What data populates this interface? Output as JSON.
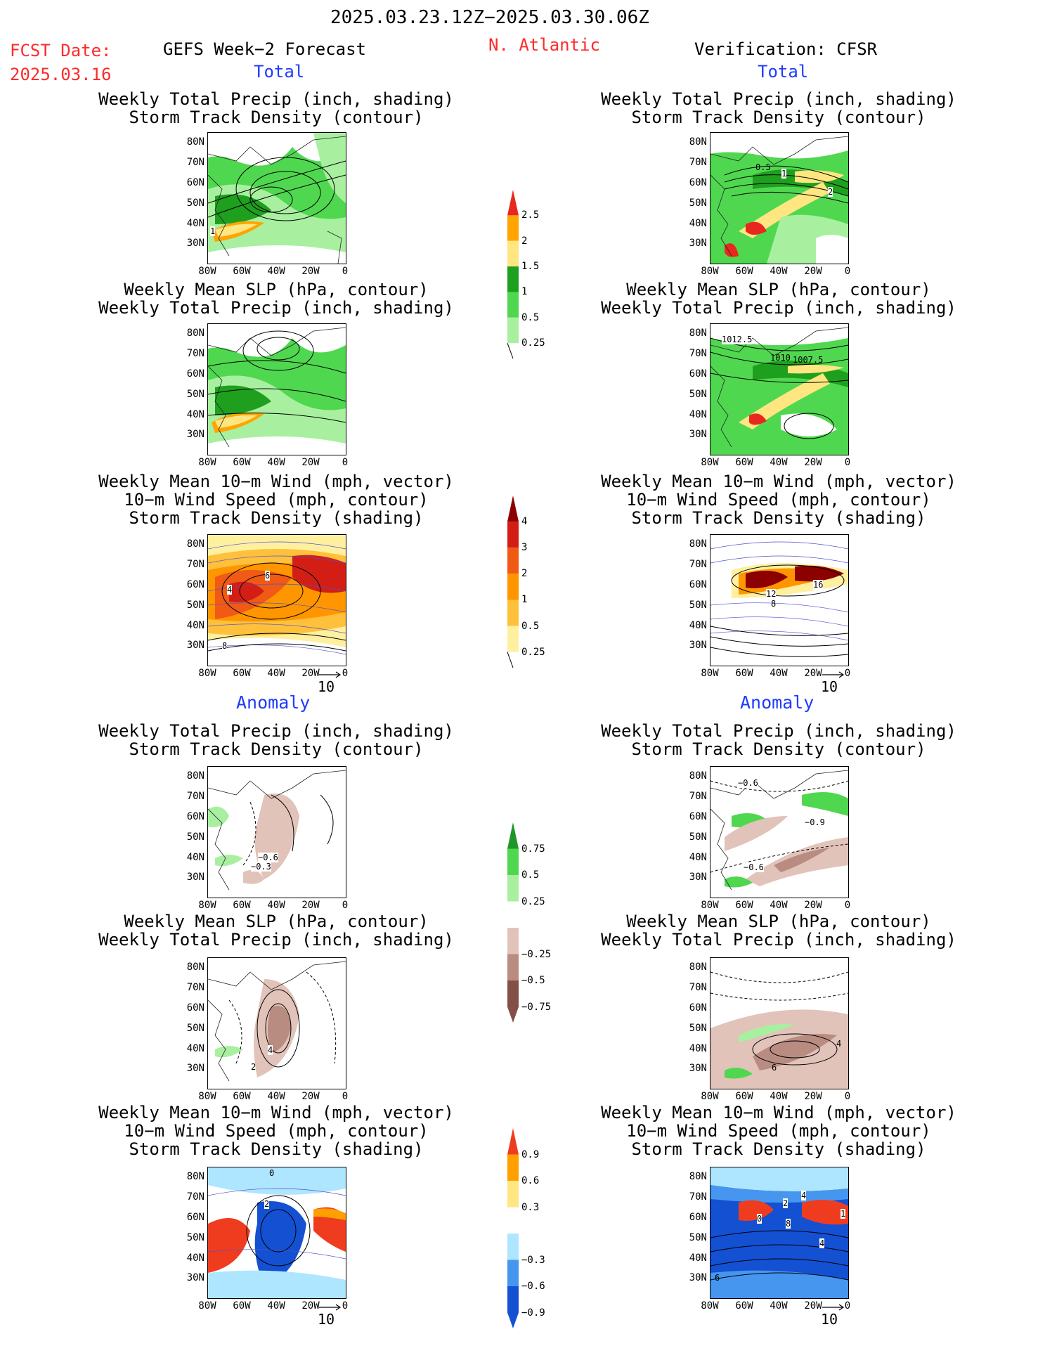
{
  "header": {
    "period": "2025.03.23.12Z−2025.03.30.06Z",
    "fcst_label": "FCST Date:",
    "fcst_date": "2025.03.16",
    "forecast_title": "GEFS Week−2 Forecast",
    "region": "N. Atlantic",
    "verification": "Verification: CFSR"
  },
  "sections": {
    "total": "Total",
    "anomaly": "Anomaly"
  },
  "panel_titles": {
    "precip_track": "Weekly Total Precip (inch, shading)\nStorm Track Density (contour)",
    "slp_precip": "Weekly Mean SLP (hPa, contour)\nWeekly Total Precip (inch, shading)",
    "wind_track": "Weekly Mean 10−m Wind (mph, vector)\n10−m Wind Speed (mph, contour)\nStorm Track Density (shading)"
  },
  "axes": {
    "lat_ticks": [
      "80N",
      "70N",
      "60N",
      "50N",
      "40N",
      "30N"
    ],
    "lon_ticks": [
      "80W",
      "60W",
      "40W",
      "20W",
      "0"
    ]
  },
  "vector_reference": "10",
  "colorbars": [
    {
      "name": "precip-total",
      "labels": [
        "2.5",
        "2",
        "1.5",
        "1",
        "0.5",
        "0.25"
      ],
      "colors": [
        "#e8281e",
        "#ffa400",
        "#ffe680",
        "#1ea01e",
        "#50d750",
        "#a8f0a0"
      ]
    },
    {
      "name": "track-total",
      "labels": [
        "4",
        "3",
        "2",
        "1",
        "0.5",
        "0.25"
      ],
      "colors": [
        "#8c0000",
        "#d21e14",
        "#f05a14",
        "#ff9600",
        "#ffc03c",
        "#fff0a0"
      ]
    },
    {
      "name": "precip-anomaly",
      "labels": [
        "0.75",
        "0.5",
        "0.25",
        "−0.25",
        "−0.5",
        "−0.75"
      ],
      "colors": [
        "#1e9628",
        "#50d750",
        "#a8f0a0",
        "#ffffff",
        "#e1c3b9",
        "#b98c82",
        "#825046"
      ]
    },
    {
      "name": "track-anomaly",
      "labels": [
        "0.9",
        "0.6",
        "0.3",
        "−0.3",
        "−0.6",
        "−0.9"
      ],
      "colors": [
        "#f03c1e",
        "#ffa000",
        "#ffe680",
        "#ffffff",
        "#afe6ff",
        "#4696f0",
        "#1450d2"
      ]
    }
  ],
  "contour_labels": {
    "r1": "0.5",
    "r1b": "1",
    "r1c": "2",
    "l1": "1",
    "r2": "1012.5",
    "r2b": "1010",
    "r2c": "1007.5",
    "l3a": "6",
    "l3b": "4",
    "l3c": "8",
    "r3a": "12",
    "r3b": "16",
    "r3c": "8",
    "l4a": "−0.6",
    "l4b": "−0.3",
    "r4a": "−0.6",
    "r4b": "−0.9",
    "r4c": "−0.6",
    "l5a": "4",
    "l5b": "2",
    "r5a": "6",
    "r5b": "4",
    "l6a": "0",
    "l6b": "2",
    "r6a": "0",
    "r6b": "2",
    "r6c": "4",
    "r6d": "8",
    "r6e": "1",
    "r6f": "4",
    "r6g": "6"
  }
}
